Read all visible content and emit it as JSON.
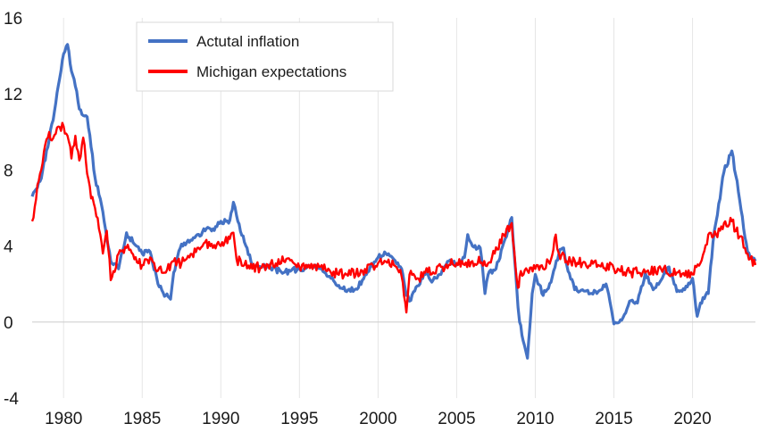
{
  "chart_data": {
    "type": "line",
    "title": "",
    "xlabel": "",
    "ylabel": "",
    "xlim": [
      1978.0,
      2024.0
    ],
    "ylim": [
      -4,
      16
    ],
    "x_ticks": [
      1980,
      1985,
      1990,
      1995,
      2000,
      2005,
      2010,
      2015,
      2020
    ],
    "x_tick_labels": [
      "1980",
      "1985",
      "1990",
      "1995",
      "2000",
      "2005",
      "2010",
      "2015",
      "2020"
    ],
    "y_ticks": [
      -4,
      0,
      4,
      8,
      12,
      16
    ],
    "y_tick_labels": [
      "-4",
      "0",
      "4",
      "8",
      "12",
      "16"
    ],
    "grid": "vertical",
    "legend_position": "top-left",
    "series": [
      {
        "name": "Actutal inflation",
        "color": "#4472c4",
        "x": [
          1978.0,
          1978.5,
          1979.0,
          1979.5,
          1980.0,
          1980.25,
          1980.5,
          1980.75,
          1981.0,
          1981.5,
          1981.75,
          1982.0,
          1982.25,
          1982.5,
          1982.75,
          1983.0,
          1983.5,
          1984.0,
          1984.5,
          1985.0,
          1985.5,
          1986.0,
          1986.5,
          1986.8,
          1987.0,
          1987.5,
          1988.0,
          1988.5,
          1989.0,
          1989.5,
          1990.0,
          1990.5,
          1990.8,
          1991.0,
          1991.5,
          1992.0,
          1993.0,
          1994.0,
          1995.0,
          1996.0,
          1997.0,
          1998.0,
          1998.5,
          1999.0,
          1999.5,
          2000.0,
          2000.5,
          2001.0,
          2001.5,
          2001.8,
          2002.0,
          2002.5,
          2003.0,
          2003.5,
          2004.0,
          2004.5,
          2005.0,
          2005.5,
          2005.7,
          2006.0,
          2006.5,
          2006.8,
          2007.0,
          2007.5,
          2008.0,
          2008.5,
          2008.9,
          2009.0,
          2009.3,
          2009.5,
          2009.8,
          2010.0,
          2010.5,
          2011.0,
          2011.5,
          2011.8,
          2012.0,
          2012.5,
          2013.0,
          2013.5,
          2014.0,
          2014.5,
          2015.0,
          2015.5,
          2016.0,
          2016.5,
          2017.0,
          2017.5,
          2018.0,
          2018.5,
          2019.0,
          2019.5,
          2020.0,
          2020.3,
          2020.5,
          2021.0,
          2021.3,
          2021.5,
          2022.0,
          2022.5,
          2023.0,
          2023.5,
          2024.0
        ],
        "y": [
          6.6,
          7.4,
          9.2,
          11.5,
          14.1,
          14.6,
          13.2,
          12.4,
          11.2,
          10.8,
          9.2,
          7.6,
          6.7,
          5.8,
          4.4,
          3.2,
          2.8,
          4.7,
          4.1,
          3.6,
          3.7,
          2.0,
          1.4,
          1.2,
          2.6,
          4.1,
          4.2,
          4.6,
          4.8,
          4.9,
          5.3,
          5.2,
          6.3,
          5.6,
          4.2,
          3.0,
          2.9,
          2.6,
          2.8,
          3.0,
          2.3,
          1.6,
          1.7,
          2.2,
          2.9,
          3.4,
          3.6,
          3.3,
          2.8,
          1.4,
          1.1,
          1.9,
          2.5,
          2.2,
          2.5,
          3.2,
          3.0,
          3.4,
          4.6,
          4.0,
          3.9,
          1.5,
          2.5,
          2.8,
          4.2,
          5.5,
          0.8,
          0.0,
          -1.2,
          -1.9,
          1.5,
          2.5,
          1.4,
          2.1,
          3.6,
          3.9,
          3.0,
          1.7,
          1.7,
          1.5,
          1.6,
          2.0,
          -0.1,
          0.1,
          1.1,
          1.0,
          2.6,
          1.7,
          2.2,
          2.9,
          1.6,
          1.7,
          2.3,
          0.3,
          1.0,
          1.5,
          4.2,
          5.3,
          7.9,
          9.0,
          6.4,
          3.7,
          3.2
        ]
      },
      {
        "name": "Michigan expectations",
        "color": "#ff0000",
        "x": [
          1978.0,
          1978.5,
          1979.0,
          1979.5,
          1980.0,
          1980.25,
          1980.5,
          1980.75,
          1981.0,
          1981.25,
          1981.5,
          1981.75,
          1982.0,
          1982.25,
          1982.5,
          1982.75,
          1983.0,
          1983.5,
          1984.0,
          1984.5,
          1985.0,
          1985.5,
          1986.0,
          1986.5,
          1987.0,
          1987.5,
          1988.0,
          1988.5,
          1989.0,
          1989.5,
          1990.0,
          1990.5,
          1990.8,
          1991.0,
          1991.5,
          1992.0,
          1993.0,
          1994.0,
          1995.0,
          1996.0,
          1997.0,
          1998.0,
          1999.0,
          2000.0,
          2001.0,
          2001.5,
          2001.8,
          2002.0,
          2002.5,
          2003.0,
          2004.0,
          2005.0,
          2005.5,
          2006.0,
          2007.0,
          2008.0,
          2008.5,
          2008.9,
          2009.0,
          2009.5,
          2010.0,
          2010.5,
          2011.0,
          2011.3,
          2011.5,
          2012.0,
          2013.0,
          2014.0,
          2015.0,
          2016.0,
          2017.0,
          2018.0,
          2019.0,
          2020.0,
          2020.5,
          2021.0,
          2021.5,
          2022.0,
          2022.5,
          2023.0,
          2023.5,
          2024.0
        ],
        "y": [
          5.3,
          7.8,
          9.7,
          9.9,
          10.3,
          9.8,
          8.6,
          9.8,
          8.5,
          9.7,
          7.8,
          6.5,
          6.0,
          4.9,
          3.6,
          4.8,
          2.2,
          3.6,
          3.9,
          3.3,
          3.0,
          3.4,
          2.7,
          2.6,
          3.2,
          3.1,
          3.4,
          3.9,
          4.2,
          3.9,
          4.0,
          4.5,
          4.7,
          3.3,
          3.0,
          2.8,
          3.0,
          3.2,
          2.9,
          3.0,
          2.6,
          2.5,
          2.7,
          3.1,
          3.0,
          2.4,
          0.5,
          2.5,
          2.3,
          2.6,
          2.9,
          3.1,
          3.0,
          3.2,
          3.1,
          4.6,
          5.2,
          1.8,
          2.4,
          2.7,
          2.8,
          2.8,
          3.3,
          4.6,
          3.6,
          3.2,
          3.1,
          3.0,
          2.8,
          2.6,
          2.6,
          2.8,
          2.6,
          2.5,
          3.1,
          4.6,
          4.6,
          5.2,
          5.3,
          4.5,
          3.6,
          3.0
        ]
      }
    ]
  }
}
